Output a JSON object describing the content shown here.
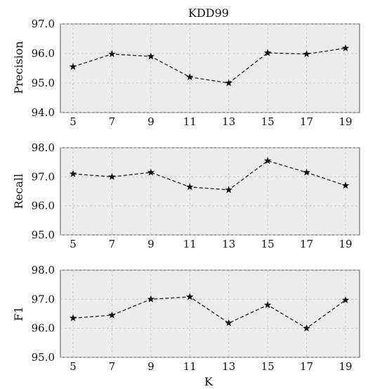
{
  "chart_data": [
    {
      "type": "line",
      "title": "KDD99",
      "xlabel": "",
      "ylabel": "Precision",
      "x": [
        5,
        7,
        9,
        11,
        13,
        15,
        17,
        19
      ],
      "x_tick_labels": [
        "5",
        "7",
        "9",
        "11",
        "13",
        "15",
        "17",
        "19"
      ],
      "series": [
        {
          "values": [
            95.55,
            95.98,
            95.9,
            95.2,
            95.0,
            96.02,
            95.98,
            96.18
          ]
        }
      ],
      "ylim": [
        94.0,
        97.0
      ],
      "y_ticks": [
        94.0,
        95.0,
        96.0,
        97.0
      ],
      "y_tick_labels": [
        "94.0",
        "95.0",
        "96.0",
        "97.0"
      ],
      "grid": true
    },
    {
      "type": "line",
      "title": "",
      "xlabel": "",
      "ylabel": "Recall",
      "x": [
        5,
        7,
        9,
        11,
        13,
        15,
        17,
        19
      ],
      "x_tick_labels": [
        "5",
        "7",
        "9",
        "11",
        "13",
        "15",
        "17",
        "19"
      ],
      "series": [
        {
          "values": [
            97.1,
            97.0,
            97.15,
            96.65,
            96.55,
            97.55,
            97.15,
            96.7
          ]
        }
      ],
      "ylim": [
        95.0,
        98.0
      ],
      "y_ticks": [
        95.0,
        96.0,
        97.0,
        98.0
      ],
      "y_tick_labels": [
        "95.0",
        "96.0",
        "97.0",
        "98.0"
      ],
      "grid": true
    },
    {
      "type": "line",
      "title": "",
      "xlabel": "K",
      "ylabel": "F1",
      "x": [
        5,
        7,
        9,
        11,
        13,
        15,
        17,
        19
      ],
      "x_tick_labels": [
        "5",
        "7",
        "9",
        "11",
        "13",
        "15",
        "17",
        "19"
      ],
      "series": [
        {
          "values": [
            96.35,
            96.45,
            97.0,
            97.08,
            96.18,
            96.8,
            96.0,
            96.97
          ]
        }
      ],
      "ylim": [
        95.0,
        98.0
      ],
      "y_ticks": [
        95.0,
        96.0,
        97.0,
        98.0
      ],
      "y_tick_labels": [
        "95.0",
        "96.0",
        "97.0",
        "98.0"
      ],
      "grid": true
    }
  ],
  "colors": {
    "plot_background": "#ececec",
    "grid": "#bdbdbd",
    "line": "#222222",
    "marker": "#111111"
  },
  "line_style": "dashed",
  "marker_icon": "star-marker"
}
